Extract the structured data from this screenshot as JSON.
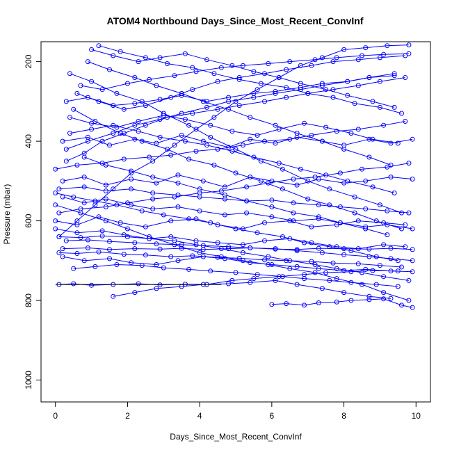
{
  "chart_data": {
    "type": "line",
    "title": "ATOM4 Northbound Days_Since_Most_Recent_ConvInf",
    "xlabel": "Days_Since_Most_Recent_ConvInf",
    "ylabel": "Pressure (mbar)",
    "xlim": [
      -0.4,
      10.4
    ],
    "ylim": [
      150,
      1055
    ],
    "y_reversed": true,
    "x_ticks": [
      0,
      2,
      4,
      6,
      8,
      10
    ],
    "y_ticks": [
      200,
      400,
      600,
      800,
      1000
    ],
    "line_color": "#0000ff",
    "marker": "open-circle",
    "reference_line": {
      "x": [
        0,
        4.6
      ],
      "y": 760,
      "color": "#000000"
    },
    "series": [
      {
        "x": [
          0.1,
          0.6,
          1.1,
          1.6,
          2.1,
          2.7,
          3.3,
          3.9,
          4.4,
          5.0,
          5.6,
          6.2,
          6.8,
          7.4,
          8.0,
          8.6,
          9.2,
          9.8
        ],
        "y": [
          640,
          600,
          560,
          520,
          480,
          450,
          410,
          370,
          340,
          300,
          270,
          240,
          210,
          190,
          170,
          165,
          160,
          158
        ]
      },
      {
        "x": [
          0.2,
          0.9,
          1.5,
          2.2,
          2.9,
          3.5,
          4.1,
          4.8,
          5.4,
          6.1,
          6.7,
          7.3,
          8.0,
          8.7,
          9.3,
          9.9
        ],
        "y": [
          670,
          668,
          672,
          670,
          671,
          669,
          672,
          670,
          668,
          671,
          672,
          669,
          670,
          671,
          669,
          672
        ]
      },
      {
        "x": [
          0.0,
          0.7,
          1.4,
          2.0,
          2.6,
          3.3,
          4.0,
          4.6,
          5.2,
          5.9,
          6.5,
          7.2,
          7.8,
          8.5,
          9.1,
          9.8
        ],
        "y": [
          560,
          580,
          600,
          620,
          640,
          660,
          680,
          690,
          700,
          710,
          720,
          730,
          745,
          760,
          780,
          800
        ]
      },
      {
        "x": [
          0.3,
          0.8,
          1.3,
          1.9,
          2.5,
          3.1,
          3.8,
          4.5,
          5.1,
          5.8,
          6.4,
          7.0,
          7.7,
          8.4,
          9.0,
          9.7
        ],
        "y": [
          450,
          430,
          400,
          380,
          360,
          340,
          330,
          320,
          310,
          300,
          290,
          280,
          270,
          260,
          250,
          240
        ]
      },
      {
        "x": [
          0.1,
          0.5,
          1.0,
          1.6,
          2.3,
          2.9,
          3.6,
          4.2,
          4.9,
          5.5,
          6.2,
          6.9,
          7.5,
          8.2,
          8.8,
          9.5
        ],
        "y": [
          760,
          758,
          762,
          760,
          758,
          761,
          759,
          760,
          750,
          745,
          740,
          735,
          730,
          728,
          725,
          726
        ]
      },
      {
        "x": [
          0.4,
          1.0,
          1.7,
          2.4,
          3.0,
          3.7,
          4.3,
          5.0,
          5.7,
          6.3,
          7.0,
          7.6,
          8.3,
          9.0,
          9.6
        ],
        "y": [
          230,
          250,
          280,
          300,
          330,
          360,
          390,
          420,
          450,
          470,
          500,
          520,
          540,
          560,
          580
        ]
      },
      {
        "x": [
          0.0,
          0.6,
          1.2,
          1.8,
          2.5,
          3.2,
          3.9,
          4.5,
          5.2,
          5.8,
          6.5,
          7.1,
          7.8,
          8.4,
          9.1,
          9.7
        ],
        "y": [
          600,
          610,
          590,
          605,
          615,
          600,
          595,
          610,
          620,
          605,
          600,
          615,
          610,
          600,
          605,
          610
        ]
      },
      {
        "x": [
          0.2,
          0.8,
          1.4,
          2.1,
          2.8,
          3.4,
          4.1,
          4.7,
          5.4,
          6.0,
          6.7,
          7.3,
          8.0,
          8.6,
          9.3,
          9.9
        ],
        "y": [
          500,
          490,
          510,
          495,
          505,
          485,
          500,
          515,
          490,
          500,
          510,
          495,
          505,
          500,
          490,
          495
        ]
      },
      {
        "x": [
          0.5,
          1.1,
          1.8,
          2.4,
          3.1,
          3.7,
          4.4,
          5.0,
          5.7,
          6.3,
          7.0,
          7.6,
          8.3,
          8.9,
          9.6
        ],
        "y": [
          320,
          350,
          380,
          400,
          420,
          445,
          460,
          480,
          500,
          520,
          545,
          560,
          580,
          600,
          620
        ]
      },
      {
        "x": [
          0.1,
          0.7,
          1.3,
          2.0,
          2.6,
          3.3,
          3.9,
          4.6,
          5.2,
          5.9,
          6.5,
          7.2,
          7.8,
          8.5,
          9.1,
          9.8
        ],
        "y": [
          640,
          642,
          638,
          640,
          645,
          650,
          660,
          670,
          680,
          690,
          700,
          710,
          720,
          730,
          740,
          750
        ]
      },
      {
        "x": [
          0.3,
          0.9,
          1.6,
          2.2,
          2.9,
          3.5,
          4.2,
          4.8,
          5.5,
          6.1,
          6.8,
          7.4,
          8.1,
          8.7,
          9.4
        ],
        "y": [
          420,
          400,
          380,
          360,
          345,
          330,
          315,
          300,
          290,
          280,
          270,
          260,
          250,
          240,
          230
        ]
      },
      {
        "x": [
          0.0,
          0.5,
          1.1,
          1.7,
          2.4,
          3.0,
          3.7,
          4.3,
          5.0,
          5.6,
          6.3,
          6.9,
          7.6,
          8.2,
          8.9,
          9.5
        ],
        "y": [
          530,
          540,
          550,
          560,
          575,
          585,
          595,
          605,
          620,
          630,
          640,
          655,
          665,
          675,
          690,
          700
        ]
      },
      {
        "x": [
          1.6,
          2.2,
          2.8,
          3.5,
          4.1,
          4.8,
          5.4,
          6.1,
          6.7,
          7.4,
          8.0,
          8.7,
          9.3
        ],
        "y": [
          790,
          780,
          770,
          765,
          760,
          758,
          755,
          750,
          760,
          770,
          780,
          790,
          795
        ]
      },
      {
        "x": [
          0.6,
          1.2,
          1.9,
          2.5,
          3.2,
          3.8,
          4.5,
          5.1,
          5.8,
          6.4,
          7.1,
          7.7,
          8.4,
          9.0,
          9.7
        ],
        "y": [
          280,
          300,
          320,
          310,
          290,
          270,
          250,
          240,
          230,
          220,
          210,
          200,
          195,
          190,
          185
        ]
      },
      {
        "x": [
          0.2,
          0.8,
          1.5,
          2.1,
          2.8,
          3.4,
          4.1,
          4.7,
          5.4,
          6.0,
          6.7,
          7.3,
          8.0,
          8.6,
          9.3,
          9.9
        ],
        "y": [
          690,
          700,
          695,
          705,
          710,
          700,
          690,
          695,
          705,
          710,
          715,
          720,
          725,
          722,
          726,
          728
        ]
      },
      {
        "x": [
          0.4,
          1.0,
          1.6,
          2.3,
          2.9,
          3.6,
          4.2,
          4.9,
          5.5,
          6.2,
          6.8,
          7.5,
          8.1,
          8.8,
          9.4
        ],
        "y": [
          380,
          370,
          360,
          375,
          390,
          400,
          410,
          425,
          440,
          455,
          470,
          485,
          500,
          515,
          530
        ]
      },
      {
        "x": [
          0.1,
          0.7,
          1.4,
          2.0,
          2.7,
          3.3,
          4.0,
          4.6,
          5.3,
          5.9,
          6.6,
          7.2,
          7.9,
          8.5,
          9.2,
          9.8
        ],
        "y": [
          580,
          570,
          565,
          555,
          545,
          540,
          530,
          525,
          515,
          505,
          495,
          490,
          480,
          470,
          465,
          455
        ]
      },
      {
        "x": [
          0.9,
          1.5,
          2.2,
          2.8,
          3.5,
          4.1,
          4.8,
          5.4,
          6.1,
          6.7,
          7.4,
          8.0,
          8.7,
          9.3
        ],
        "y": [
          200,
          220,
          240,
          260,
          280,
          300,
          320,
          340,
          360,
          380,
          400,
          420,
          440,
          460
        ]
      },
      {
        "x": [
          0.3,
          0.9,
          1.5,
          2.2,
          2.8,
          3.5,
          4.1,
          4.8,
          5.4,
          6.1,
          6.7,
          7.4,
          8.0,
          8.7,
          9.3,
          9.9
        ],
        "y": [
          650,
          648,
          652,
          655,
          658,
          660,
          662,
          665,
          668,
          670,
          675,
          680,
          685,
          690,
          695,
          700
        ]
      },
      {
        "x": [
          0.0,
          0.6,
          1.3,
          1.9,
          2.6,
          3.2,
          3.9,
          4.5,
          5.2,
          5.8,
          6.5,
          7.1,
          7.8,
          8.4,
          9.1,
          9.7
        ],
        "y": [
          470,
          460,
          455,
          445,
          440,
          435,
          425,
          420,
          410,
          400,
          395,
          385,
          375,
          370,
          360,
          350
        ]
      },
      {
        "x": [
          1.2,
          1.8,
          2.5,
          3.1,
          3.8,
          4.4,
          5.1,
          5.7,
          6.4,
          7.0,
          7.7,
          8.3,
          9.0,
          9.6
        ],
        "y": [
          160,
          175,
          190,
          205,
          215,
          230,
          245,
          255,
          265,
          280,
          290,
          305,
          315,
          330
        ]
      },
      {
        "x": [
          0.5,
          1.1,
          1.7,
          2.4,
          3.0,
          3.7,
          4.3,
          5.0,
          5.6,
          6.3,
          6.9,
          7.6,
          8.2,
          8.9,
          9.5
        ],
        "y": [
          720,
          715,
          710,
          712,
          718,
          722,
          726,
          730,
          735,
          740,
          745,
          750,
          755,
          760,
          765
        ]
      },
      {
        "x": [
          0.2,
          0.8,
          1.4,
          2.1,
          2.7,
          3.4,
          4.0,
          4.7,
          5.3,
          6.0,
          6.6,
          7.3,
          7.9,
          8.6,
          9.2,
          9.9
        ],
        "y": [
          540,
          555,
          545,
          560,
          570,
          565,
          575,
          585,
          580,
          590,
          600,
          595,
          605,
          615,
          610,
          620
        ]
      },
      {
        "x": [
          0.7,
          1.3,
          2.0,
          2.6,
          3.3,
          3.9,
          4.6,
          5.2,
          5.9,
          6.5,
          7.2,
          7.8,
          8.5,
          9.1,
          9.8
        ],
        "y": [
          260,
          270,
          255,
          245,
          235,
          225,
          215,
          210,
          205,
          200,
          195,
          190,
          185,
          182,
          180
        ]
      },
      {
        "x": [
          0.1,
          0.6,
          1.2,
          1.9,
          2.5,
          3.2,
          3.8,
          4.5,
          5.1,
          5.8,
          6.4,
          7.1,
          7.7,
          8.4,
          9.0,
          9.6
        ],
        "y": [
          680,
          682,
          678,
          684,
          686,
          690,
          688,
          692,
          694,
          698,
          700,
          702,
          706,
          708,
          712,
          716
        ]
      },
      {
        "x": [
          0.4,
          1.0,
          1.7,
          2.3,
          3.0,
          3.6,
          4.3,
          4.9,
          5.6,
          6.2,
          6.9,
          7.5,
          8.2,
          8.8,
          9.5
        ],
        "y": [
          340,
          355,
          365,
          350,
          335,
          345,
          360,
          375,
          385,
          370,
          355,
          365,
          380,
          395,
          405
        ]
      },
      {
        "x": [
          0.0,
          0.6,
          1.3,
          1.9,
          2.6,
          3.2,
          3.9,
          4.5,
          5.2,
          5.8,
          6.5,
          7.1,
          7.8,
          8.4,
          9.1,
          9.7
        ],
        "y": [
          620,
          630,
          625,
          635,
          645,
          640,
          650,
          655,
          660,
          650,
          645,
          655,
          665,
          670,
          660,
          665
        ]
      },
      {
        "x": [
          0.8,
          1.4,
          2.1,
          2.7,
          3.4,
          4.0,
          4.7,
          5.3,
          6.0,
          6.6,
          7.3,
          7.9,
          8.6,
          9.2
        ],
        "y": [
          440,
          460,
          475,
          490,
          505,
          520,
          535,
          550,
          565,
          580,
          590,
          605,
          620,
          635
        ]
      },
      {
        "x": [
          6.0,
          6.4,
          6.9,
          7.3,
          7.8,
          8.2,
          8.7,
          9.1,
          9.6,
          9.9
        ],
        "y": [
          810,
          808,
          812,
          806,
          804,
          800,
          798,
          796,
          812,
          818
        ]
      },
      {
        "x": [
          0.2,
          0.9,
          1.5,
          2.2,
          2.8,
          3.5,
          4.1,
          4.8,
          5.4,
          6.1,
          6.7,
          7.4,
          8.0,
          8.7,
          9.3,
          9.9
        ],
        "y": [
          400,
          390,
          410,
          395,
          405,
          385,
          400,
          415,
          395,
          405,
          390,
          400,
          410,
          395,
          405,
          395
        ]
      },
      {
        "x": [
          0.3,
          0.9,
          1.6,
          2.2,
          2.9,
          3.5,
          4.2,
          4.8,
          5.5,
          6.1,
          6.8,
          7.4,
          8.1,
          8.7,
          9.4
        ],
        "y": [
          300,
          290,
          310,
          305,
          295,
          285,
          300,
          290,
          280,
          275,
          265,
          255,
          250,
          240,
          235
        ]
      },
      {
        "x": [
          0.1,
          0.8,
          1.4,
          2.1,
          2.7,
          3.4,
          4.0,
          4.7,
          5.3,
          6.0,
          6.6,
          7.3,
          7.9,
          8.6,
          9.2,
          9.8
        ],
        "y": [
          520,
          515,
          525,
          520,
          530,
          535,
          540,
          545,
          550,
          548,
          555,
          560,
          565,
          570,
          575,
          580
        ]
      },
      {
        "x": [
          1.0,
          1.6,
          2.3,
          2.9,
          3.6,
          4.2,
          4.9,
          5.5,
          6.2,
          6.8,
          7.5,
          8.1,
          8.8,
          9.4
        ],
        "y": [
          170,
          185,
          200,
          190,
          180,
          195,
          210,
          225,
          240,
          255,
          270,
          285,
          300,
          315
        ]
      }
    ]
  }
}
